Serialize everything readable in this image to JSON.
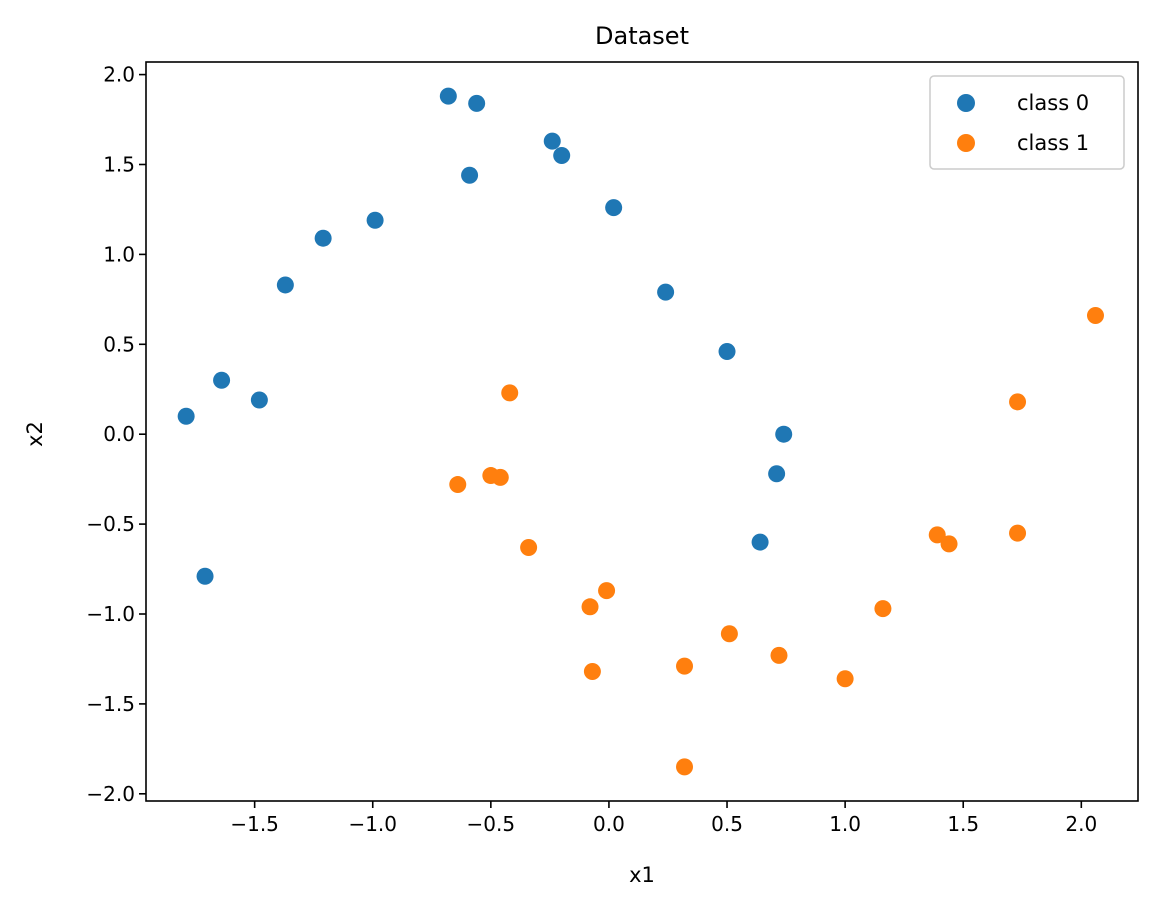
{
  "chart_data": {
    "type": "scatter",
    "title": "Dataset",
    "xlabel": "x1",
    "ylabel": "x2",
    "xlim": [
      -1.96,
      2.24
    ],
    "ylim": [
      -2.04,
      2.07
    ],
    "xticks": [
      -1.5,
      -1.0,
      -0.5,
      0.0,
      0.5,
      1.0,
      1.5,
      2.0
    ],
    "xtick_labels": [
      "−1.5",
      "−1.0",
      "−0.5",
      "0.0",
      "0.5",
      "1.0",
      "1.5",
      "2.0"
    ],
    "yticks": [
      -2.0,
      -1.5,
      -1.0,
      -0.5,
      0.0,
      0.5,
      1.0,
      1.5,
      2.0
    ],
    "ytick_labels": [
      "−2.0",
      "−1.5",
      "−1.0",
      "−0.5",
      "0.0",
      "0.5",
      "1.0",
      "1.5",
      "2.0"
    ],
    "grid": false,
    "legend_position": "top-right",
    "series": [
      {
        "name": "class 0",
        "color": "#1f77b4",
        "points": [
          [
            -0.68,
            1.88
          ],
          [
            -0.56,
            1.84
          ],
          [
            -0.24,
            1.63
          ],
          [
            -0.2,
            1.55
          ],
          [
            -0.59,
            1.44
          ],
          [
            0.02,
            1.26
          ],
          [
            -0.99,
            1.19
          ],
          [
            -1.21,
            1.09
          ],
          [
            -1.37,
            0.83
          ],
          [
            0.24,
            0.79
          ],
          [
            0.5,
            0.46
          ],
          [
            -1.64,
            0.3
          ],
          [
            -1.48,
            0.19
          ],
          [
            -1.79,
            0.1
          ],
          [
            0.74,
            0.0
          ],
          [
            0.71,
            -0.22
          ],
          [
            0.64,
            -0.6
          ],
          [
            -1.71,
            -0.79
          ]
        ]
      },
      {
        "name": "class 1",
        "color": "#ff7f0e",
        "points": [
          [
            2.06,
            0.66
          ],
          [
            -0.42,
            0.23
          ],
          [
            1.73,
            0.18
          ],
          [
            -0.64,
            -0.28
          ],
          [
            -0.5,
            -0.23
          ],
          [
            -0.46,
            -0.24
          ],
          [
            1.39,
            -0.56
          ],
          [
            1.44,
            -0.61
          ],
          [
            1.73,
            -0.55
          ],
          [
            -0.34,
            -0.63
          ],
          [
            -0.01,
            -0.87
          ],
          [
            -0.08,
            -0.96
          ],
          [
            1.16,
            -0.97
          ],
          [
            0.51,
            -1.11
          ],
          [
            0.72,
            -1.23
          ],
          [
            0.32,
            -1.29
          ],
          [
            -0.07,
            -1.32
          ],
          [
            1.0,
            -1.36
          ],
          [
            0.32,
            -1.85
          ]
        ]
      }
    ]
  }
}
